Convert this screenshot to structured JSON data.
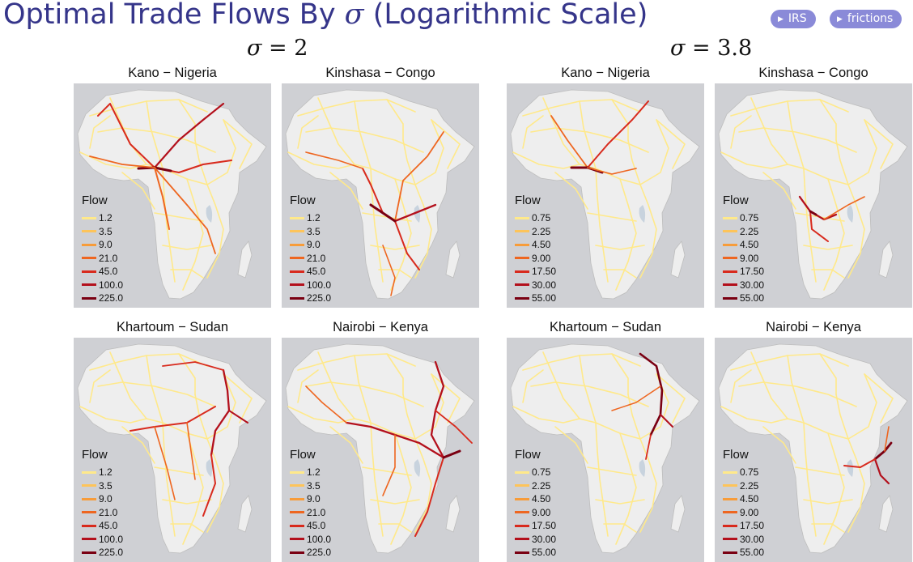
{
  "header": {
    "title_text": "Optimal Trade Flows By ",
    "title_symbol": "σ",
    "title_suffix": " (Logarithmic Scale)",
    "buttons": [
      {
        "label": "IRS",
        "icon": "triangle-right-icon"
      },
      {
        "label": "frictions",
        "icon": "triangle-right-icon"
      }
    ]
  },
  "columns": [
    {
      "symbol": "σ",
      "equals": " = ",
      "value": "2"
    },
    {
      "symbol": "σ",
      "equals": " = ",
      "value": "3.8"
    }
  ],
  "legends": {
    "sigma2": [
      "1.2",
      "3.5",
      "9.0",
      "21.0",
      "45.0",
      "100.0",
      "225.0"
    ],
    "sigma38": [
      "0.75",
      "2.25",
      "4.50",
      "9.00",
      "17.50",
      "30.00",
      "55.00"
    ]
  },
  "legend_title": "Flow",
  "legend_colors": [
    "#ffe98a",
    "#fdc45a",
    "#f79c3a",
    "#ee6620",
    "#d82a1d",
    "#b3101c",
    "#7a0012"
  ],
  "colors": {
    "title": "#35358a",
    "button": "#8a8ad8",
    "ocean": "#cfd0d4",
    "land": "#eeeeee"
  },
  "panels": [
    {
      "title": "Kano − Nigeria",
      "legend": "sigma2"
    },
    {
      "title": "Kinshasa − Congo",
      "legend": "sigma2"
    },
    {
      "title": "Kano − Nigeria",
      "legend": "sigma38"
    },
    {
      "title": "Kinshasa − Congo",
      "legend": "sigma38"
    },
    {
      "title": "Khartoum − Sudan",
      "legend": "sigma2"
    },
    {
      "title": "Nairobi − Kenya",
      "legend": "sigma2"
    },
    {
      "title": "Khartoum − Sudan",
      "legend": "sigma38"
    },
    {
      "title": "Nairobi − Kenya",
      "legend": "sigma38"
    }
  ]
}
